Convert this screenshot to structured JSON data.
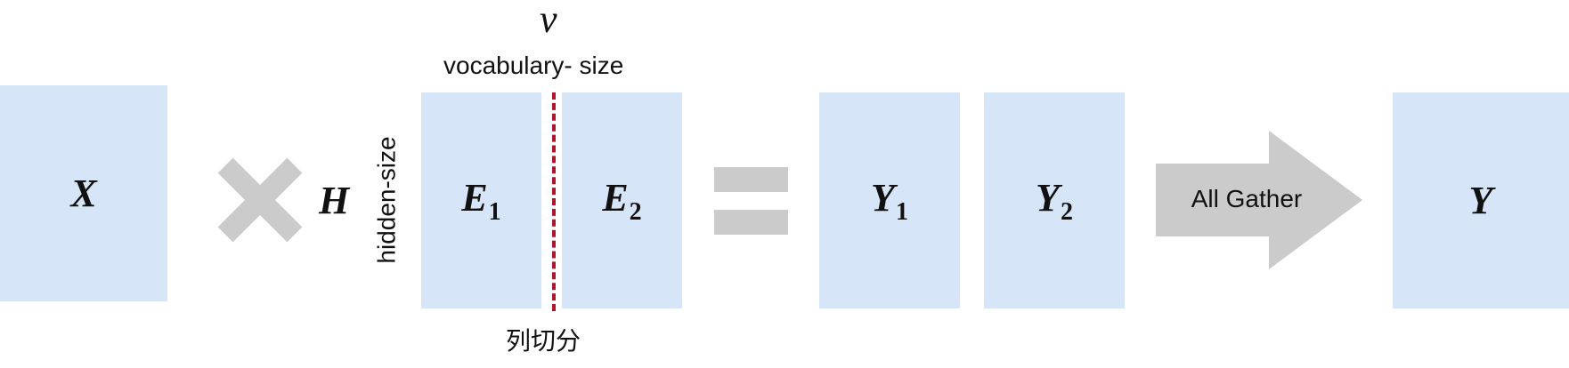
{
  "matrices": {
    "x": {
      "symbol": "X"
    },
    "h": {
      "symbol": "H"
    },
    "e1": {
      "symbol": "E",
      "sub": "1"
    },
    "e2": {
      "symbol": "E",
      "sub": "2"
    },
    "y1": {
      "symbol": "Y",
      "sub": "1"
    },
    "y2": {
      "symbol": "Y",
      "sub": "2"
    },
    "y": {
      "symbol": "Y"
    }
  },
  "labels": {
    "v_symbol": "v",
    "vocab": "vocabulary- size",
    "hidden": "hidden-size",
    "split": "列切分",
    "gather": "All Gather"
  },
  "colors": {
    "box": "#d6e6f8",
    "operator": "#cbcbcb",
    "split_line": "#b0162b"
  }
}
